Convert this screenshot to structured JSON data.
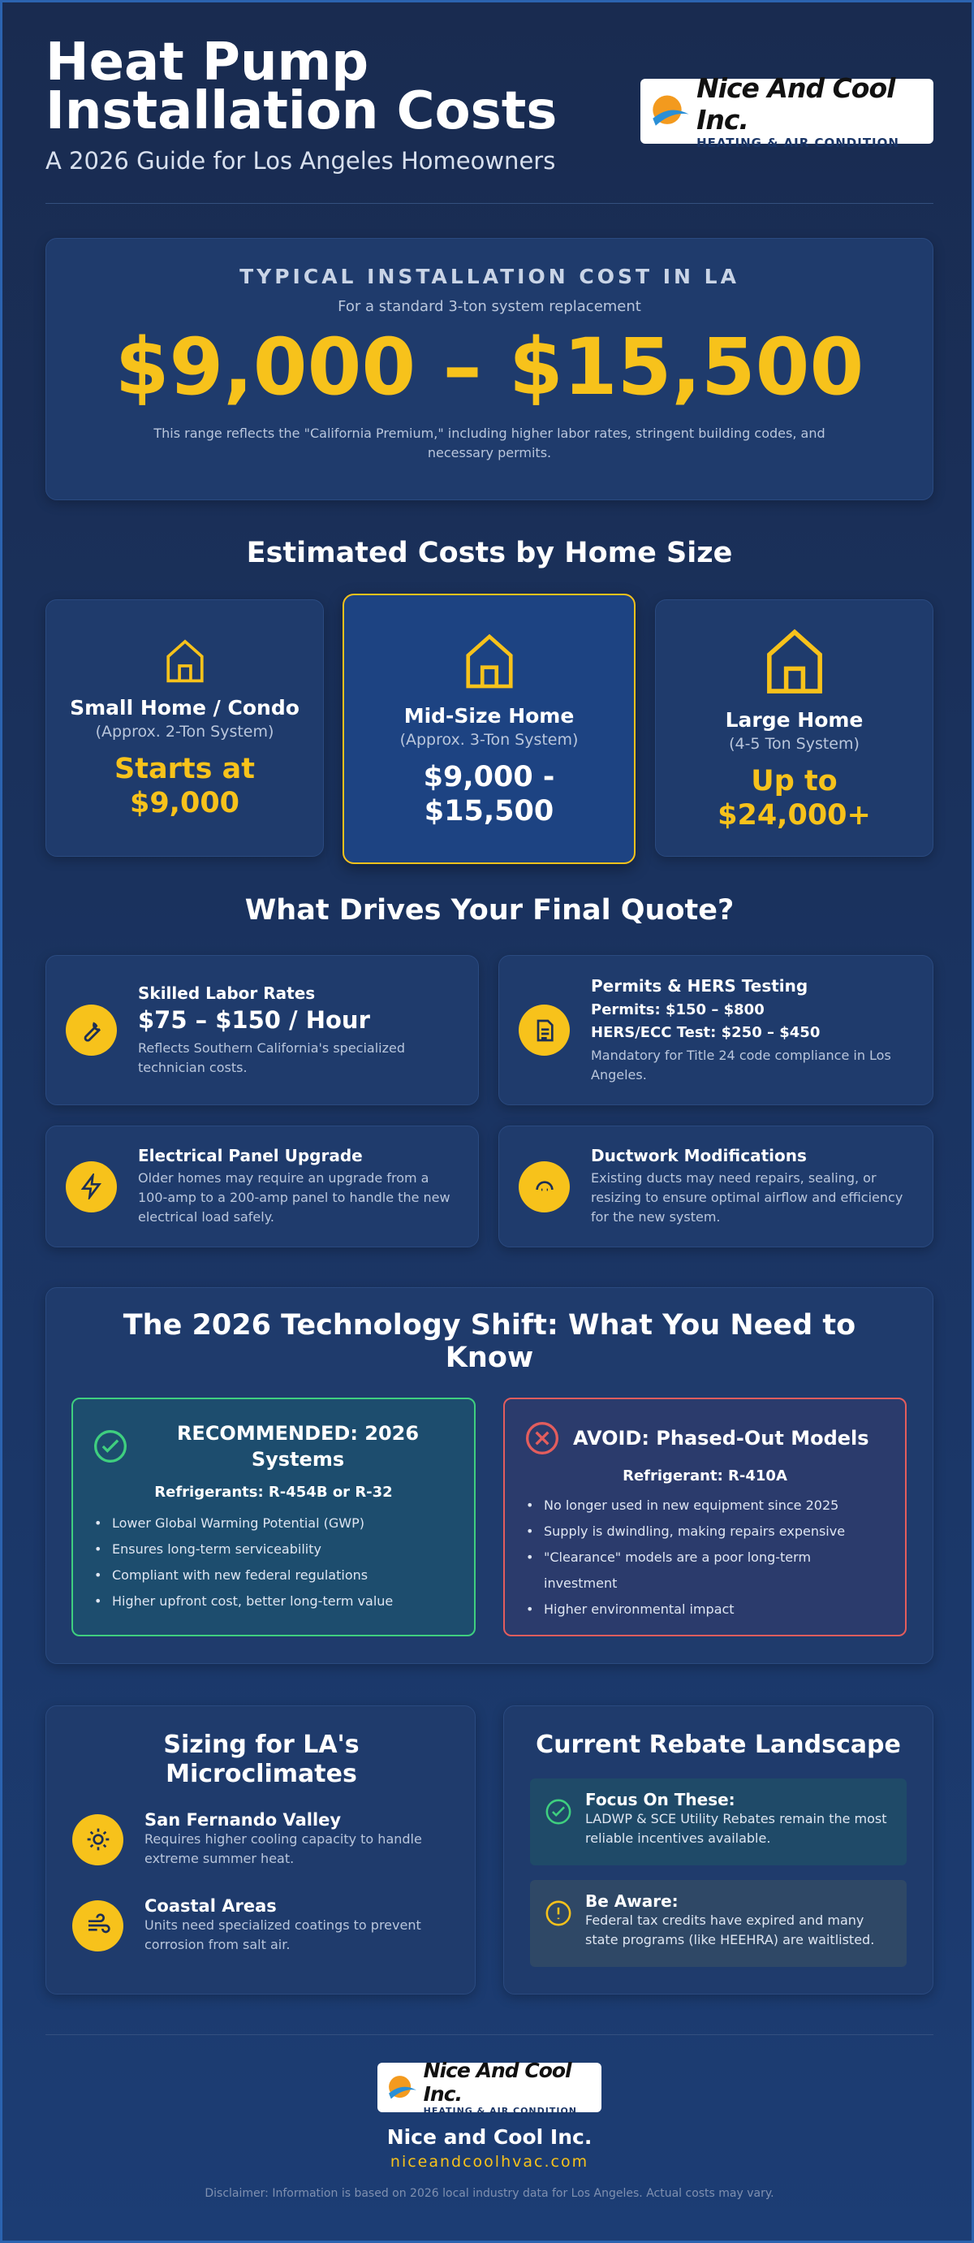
{
  "header": {
    "title": "Heat Pump Installation Costs",
    "subtitle": "A 2026 Guide for Los Angeles Homeowners"
  },
  "logo": {
    "name": "Nice And Cool Inc.",
    "tagline": "HEATING & AIR CONDITION"
  },
  "hero": {
    "label": "TYPICAL INSTALLATION COST IN LA",
    "sub": "For a standard 3-ton system replacement",
    "price": "$9,000 – $15,500",
    "note": "This range reflects the \"California Premium,\" including higher labor rates, stringent building codes, and necessary permits."
  },
  "sizes": {
    "title": "Estimated Costs by Home Size",
    "cards": [
      {
        "name": "Small Home / Condo",
        "tons": "(Approx. 2-Ton System)",
        "price": "Starts at $9,000"
      },
      {
        "name": "Mid-Size Home",
        "tons": "(Approx. 3-Ton System)",
        "price": "$9,000 - $15,500"
      },
      {
        "name": "Large Home",
        "tons": "(4-5 Ton System)",
        "price": "Up to $24,000+"
      }
    ]
  },
  "drivers": {
    "title": "What Drives Your Final Quote?",
    "items": [
      {
        "title": "Skilled Labor Rates",
        "highlights": [
          "$75 – $150 / Hour"
        ],
        "text": "Reflects Southern California's specialized technician costs."
      },
      {
        "title": "Permits & HERS Testing",
        "highlights": [
          "Permits: $150 – $800",
          "HERS/ECC Test: $250 – $450"
        ],
        "text": "Mandatory for Title 24 code compliance in Los Angeles."
      },
      {
        "title": "Electrical Panel Upgrade",
        "highlights": [],
        "text": "Older homes may require an upgrade from a 100-amp to a 200-amp panel to handle the new electrical load safely."
      },
      {
        "title": "Ductwork Modifications",
        "highlights": [],
        "text": "Existing ducts may need repairs, sealing, or resizing to ensure optimal airflow and efficiency for the new system."
      }
    ]
  },
  "tech": {
    "title": "The 2026 Technology Shift: What You Need to Know",
    "recommended": {
      "title": "RECOMMENDED: 2026 Systems",
      "refrigerant": "Refrigerants: R-454B or R-32",
      "bullets": [
        "Lower Global Warming Potential (GWP)",
        "Ensures long-term serviceability",
        "Compliant with new federal regulations",
        "Higher upfront cost, better long-term value"
      ]
    },
    "avoid": {
      "title": "AVOID: Phased-Out Models",
      "refrigerant": "Refrigerant: R-410A",
      "bullets": [
        "No longer used in new equipment since 2025",
        "Supply is dwindling, making repairs expensive",
        "\"Clearance\" models are a poor long-term investment",
        "Higher environmental impact"
      ]
    }
  },
  "sizing": {
    "title": "Sizing for LA's Microclimates",
    "items": [
      {
        "title": "San Fernando Valley",
        "text": "Requires higher cooling capacity to handle extreme summer heat."
      },
      {
        "title": "Coastal Areas",
        "text": "Units need specialized coatings to prevent corrosion from salt air."
      }
    ]
  },
  "rebates": {
    "title": "Current Rebate Landscape",
    "items": [
      {
        "title": "Focus On These:",
        "text": "LADWP & SCE Utility Rebates remain the most reliable incentives available."
      },
      {
        "title": "Be Aware:",
        "text": "Federal tax credits have expired and many state programs (like HEEHRA) are waitlisted."
      }
    ]
  },
  "footer": {
    "name": "Nice and Cool Inc.",
    "url": "niceandcoolhvac.com",
    "disclaimer": "Disclaimer: Information is based on 2026 local industry data for Los Angeles. Actual costs may vary."
  }
}
